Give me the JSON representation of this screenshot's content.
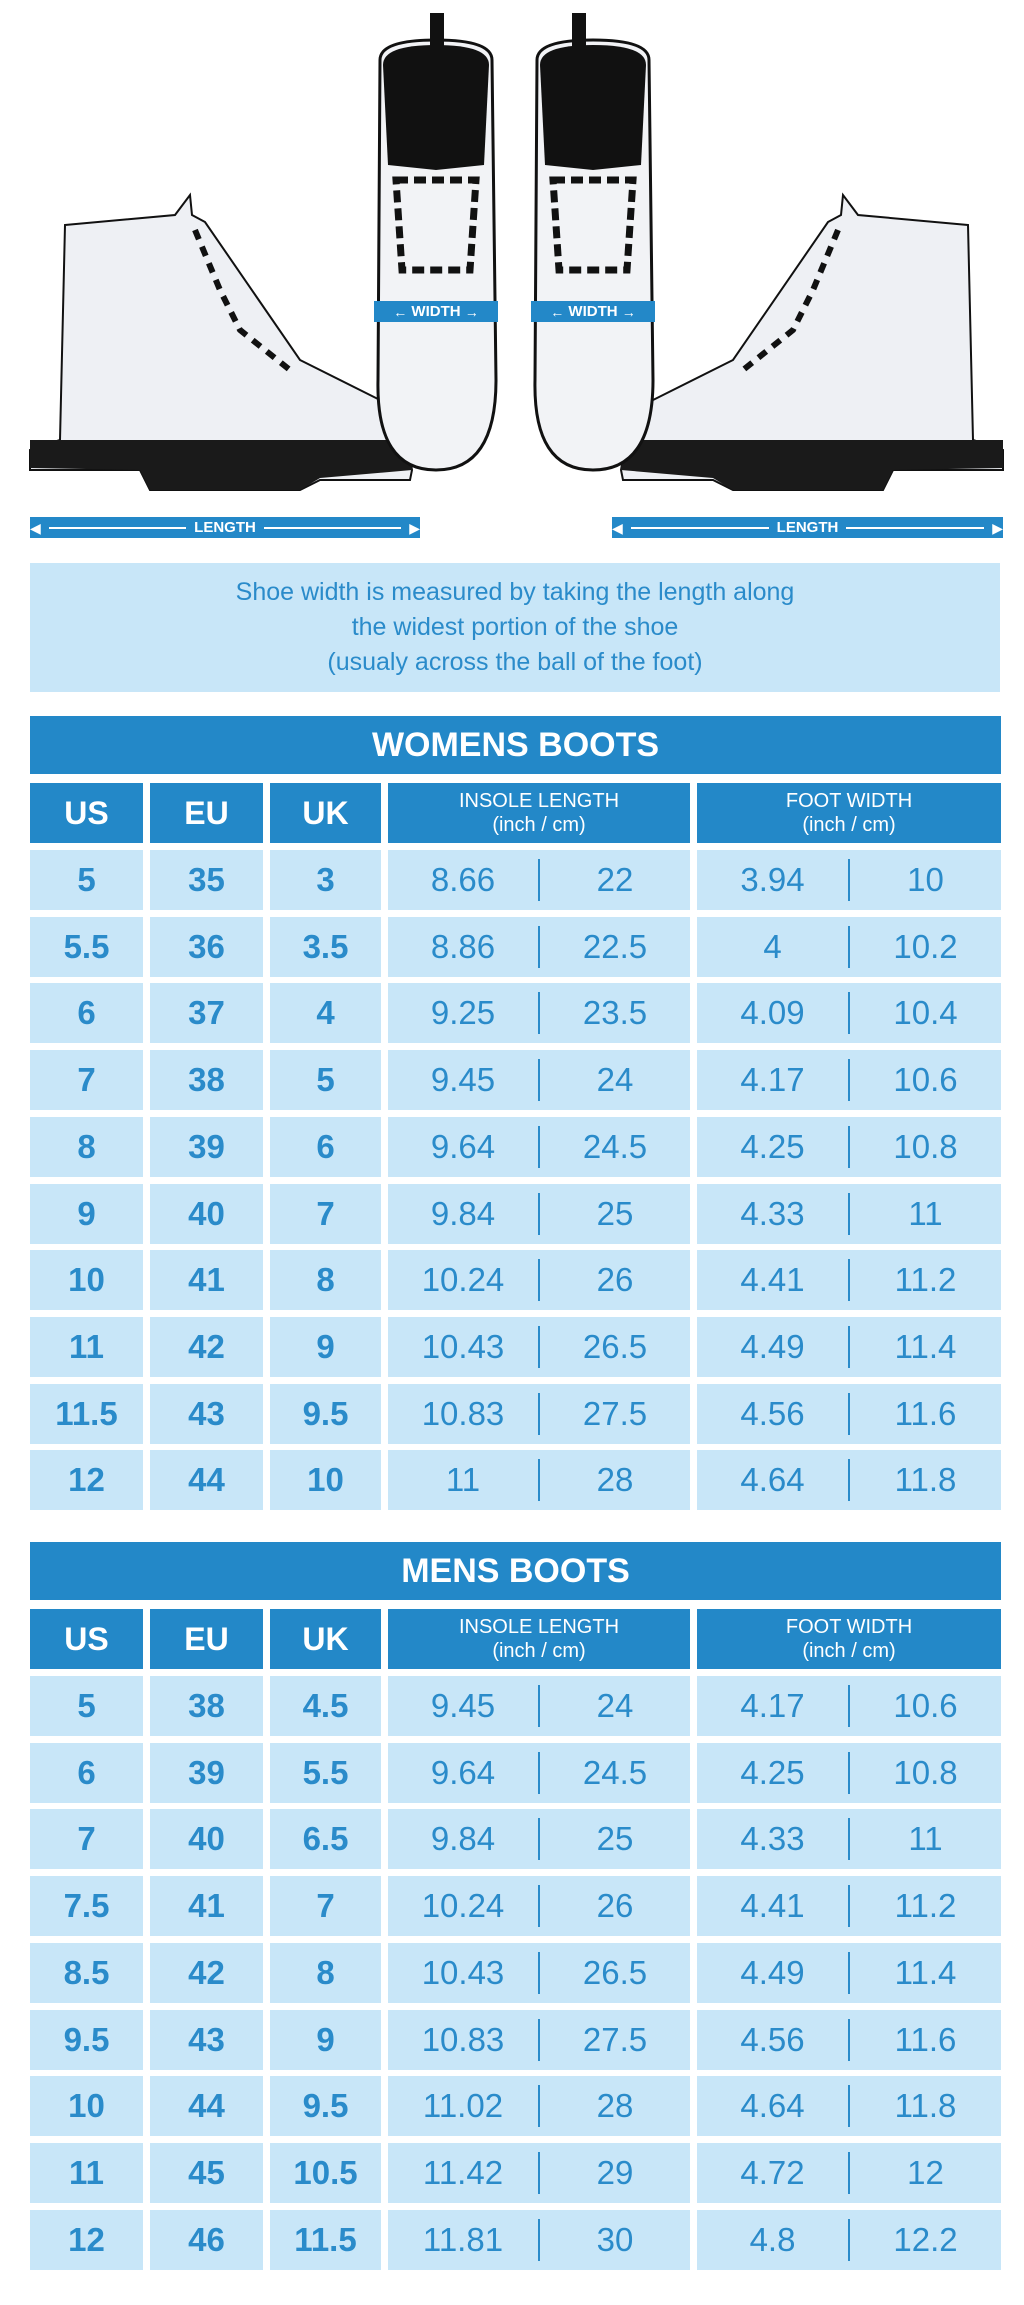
{
  "diagram": {
    "length_label": "LENGTH",
    "width_label": "WIDTH"
  },
  "info": {
    "lines": [
      "Shoe width is measured by taking the length along",
      "the widest portion of the shoe",
      "(usualy across the ball of the foot)"
    ]
  },
  "colors": {
    "header_blue": "#2388c8",
    "cell_light_blue": "#c8e6f8",
    "text_blue": "#2a8bca"
  },
  "columns": {
    "us": "US",
    "eu": "EU",
    "uk": "UK",
    "insole": "INSOLE LENGTH",
    "foot": "FOOT WIDTH",
    "units": "(inch / cm)"
  },
  "tables": [
    {
      "title": "WOMENS BOOTS",
      "rows": [
        [
          "5",
          "35",
          "3",
          "8.66",
          "22",
          "3.94",
          "10"
        ],
        [
          "5.5",
          "36",
          "3.5",
          "8.86",
          "22.5",
          "4",
          "10.2"
        ],
        [
          "6",
          "37",
          "4",
          "9.25",
          "23.5",
          "4.09",
          "10.4"
        ],
        [
          "7",
          "38",
          "5",
          "9.45",
          "24",
          "4.17",
          "10.6"
        ],
        [
          "8",
          "39",
          "6",
          "9.64",
          "24.5",
          "4.25",
          "10.8"
        ],
        [
          "9",
          "40",
          "7",
          "9.84",
          "25",
          "4.33",
          "11"
        ],
        [
          "10",
          "41",
          "8",
          "10.24",
          "26",
          "4.41",
          "11.2"
        ],
        [
          "11",
          "42",
          "9",
          "10.43",
          "26.5",
          "4.49",
          "11.4"
        ],
        [
          "11.5",
          "43",
          "9.5",
          "10.83",
          "27.5",
          "4.56",
          "11.6"
        ],
        [
          "12",
          "44",
          "10",
          "11",
          "28",
          "4.64",
          "11.8"
        ]
      ]
    },
    {
      "title": "MENS BOOTS",
      "rows": [
        [
          "5",
          "38",
          "4.5",
          "9.45",
          "24",
          "4.17",
          "10.6"
        ],
        [
          "6",
          "39",
          "5.5",
          "9.64",
          "24.5",
          "4.25",
          "10.8"
        ],
        [
          "7",
          "40",
          "6.5",
          "9.84",
          "25",
          "4.33",
          "11"
        ],
        [
          "7.5",
          "41",
          "7",
          "10.24",
          "26",
          "4.41",
          "11.2"
        ],
        [
          "8.5",
          "42",
          "8",
          "10.43",
          "26.5",
          "4.49",
          "11.4"
        ],
        [
          "9.5",
          "43",
          "9",
          "10.83",
          "27.5",
          "4.56",
          "11.6"
        ],
        [
          "10",
          "44",
          "9.5",
          "11.02",
          "28",
          "4.64",
          "11.8"
        ],
        [
          "11",
          "45",
          "10.5",
          "11.42",
          "29",
          "4.72",
          "12"
        ],
        [
          "12",
          "46",
          "11.5",
          "11.81",
          "30",
          "4.8",
          "12.2"
        ]
      ]
    }
  ]
}
